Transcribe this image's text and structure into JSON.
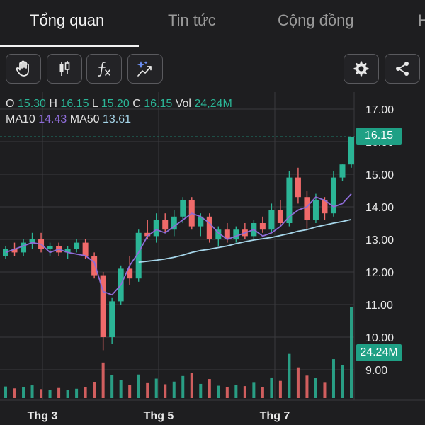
{
  "tabs": [
    {
      "label": "Tổng quan",
      "active": true
    },
    {
      "label": "Tin tức",
      "active": false
    },
    {
      "label": "Cộng đồng",
      "active": false
    },
    {
      "label": "H",
      "active": false
    }
  ],
  "toolbar": {
    "left": [
      {
        "icon": "hand-pointer-icon"
      },
      {
        "icon": "candlestick-icon"
      },
      {
        "icon": "function-fx-icon"
      },
      {
        "icon": "sparkle-trend-icon"
      }
    ],
    "right": [
      {
        "icon": "gear-icon"
      },
      {
        "icon": "share-icon"
      }
    ]
  },
  "legend": {
    "o_label": "O",
    "o_value": "15.30",
    "h_label": "H",
    "h_value": "16.15",
    "l_label": "L",
    "l_value": "15.20",
    "c_label": "C",
    "c_value": "16.15",
    "vol_label": "Vol",
    "vol_value": "24,24M",
    "ma10_label": "MA10",
    "ma10_value": "14.43",
    "ma50_label": "MA50",
    "ma50_value": "13.61"
  },
  "price_badge": "16.15",
  "volume_badge": "24.24M",
  "colors": {
    "up": "#2bb596",
    "down": "#f06a6a",
    "ma10": "#8e6cd8",
    "ma50": "#a6d6ea",
    "background": "#1e1e20",
    "grid": "#3a3a3e"
  },
  "chart_data": {
    "type": "candlestick",
    "yticks": [
      "17.00",
      "16.00",
      "15.00",
      "14.00",
      "13.00",
      "12.00",
      "11.00",
      "10.00",
      "9.00"
    ],
    "ylim": [
      8.6,
      17.4
    ],
    "xticks": [
      "Thg 3",
      "Thg 5",
      "Thg 7"
    ],
    "last_close": 16.15,
    "grid": true,
    "series": [
      {
        "name": "MA10",
        "values": [
          12.6,
          12.7,
          12.8,
          12.9,
          12.85,
          12.6,
          12.7,
          12.6,
          12.55,
          12.5,
          12.3,
          11.4,
          11.3,
          11.6,
          12.2,
          12.6,
          13.1,
          13.3,
          13.2,
          13.4,
          13.6,
          13.8,
          13.7,
          13.5,
          13.2,
          13.0,
          13.1,
          13.2,
          13.3,
          13.1,
          13.2,
          13.4,
          13.7,
          13.9,
          14.0,
          14.3,
          14.2,
          14.0,
          14.1,
          14.4
        ]
      },
      {
        "name": "MA50",
        "values": [
          null,
          null,
          null,
          null,
          null,
          null,
          null,
          null,
          null,
          null,
          null,
          null,
          null,
          null,
          null,
          12.3,
          12.33,
          12.36,
          12.4,
          12.45,
          12.52,
          12.6,
          12.66,
          12.7,
          12.75,
          12.8,
          12.87,
          12.93,
          12.98,
          13.02,
          13.06,
          13.12,
          13.18,
          13.25,
          13.3,
          13.38,
          13.44,
          13.5,
          13.55,
          13.61
        ]
      }
    ],
    "candles": [
      [
        12.5,
        12.8,
        12.4,
        12.7
      ],
      [
        12.7,
        12.9,
        12.5,
        12.6
      ],
      [
        12.6,
        13.0,
        12.5,
        12.9
      ],
      [
        12.9,
        13.2,
        12.7,
        13.0
      ],
      [
        13.0,
        13.2,
        12.6,
        12.7
      ],
      [
        12.7,
        12.9,
        12.5,
        12.8
      ],
      [
        12.8,
        12.9,
        12.5,
        12.6
      ],
      [
        12.6,
        12.8,
        12.4,
        12.7
      ],
      [
        12.7,
        13.0,
        12.6,
        12.9
      ],
      [
        12.9,
        13.0,
        12.4,
        12.5
      ],
      [
        12.5,
        12.6,
        11.8,
        11.9
      ],
      [
        11.9,
        12.0,
        9.6,
        10.0
      ],
      [
        10.0,
        11.2,
        9.8,
        11.1
      ],
      [
        11.1,
        12.2,
        11.0,
        12.1
      ],
      [
        12.1,
        12.5,
        11.6,
        11.8
      ],
      [
        11.8,
        13.3,
        11.7,
        13.2
      ],
      [
        13.2,
        13.6,
        13.0,
        13.1
      ],
      [
        13.1,
        13.8,
        12.9,
        13.6
      ],
      [
        13.6,
        13.8,
        13.2,
        13.3
      ],
      [
        13.3,
        13.9,
        13.1,
        13.7
      ],
      [
        13.7,
        14.3,
        13.5,
        14.2
      ],
      [
        14.2,
        14.3,
        13.3,
        13.4
      ],
      [
        13.4,
        13.8,
        13.1,
        13.7
      ],
      [
        13.7,
        13.8,
        12.9,
        13.0
      ],
      [
        13.0,
        13.4,
        12.8,
        13.3
      ],
      [
        13.3,
        13.5,
        12.9,
        13.0
      ],
      [
        13.0,
        13.4,
        12.9,
        13.3
      ],
      [
        13.3,
        13.5,
        13.0,
        13.1
      ],
      [
        13.1,
        13.6,
        13.0,
        13.5
      ],
      [
        13.5,
        13.7,
        13.2,
        13.3
      ],
      [
        13.3,
        14.1,
        13.2,
        13.9
      ],
      [
        13.9,
        14.2,
        13.4,
        13.5
      ],
      [
        13.5,
        15.1,
        13.4,
        14.9
      ],
      [
        14.9,
        15.2,
        14.1,
        14.3
      ],
      [
        14.3,
        14.5,
        13.3,
        13.6
      ],
      [
        13.6,
        14.4,
        13.5,
        14.2
      ],
      [
        14.2,
        14.3,
        13.6,
        13.8
      ],
      [
        13.8,
        15.1,
        13.7,
        14.9
      ],
      [
        14.9,
        15.3,
        14.8,
        15.3
      ],
      [
        15.3,
        16.15,
        15.2,
        16.15
      ]
    ],
    "volume_badge": "24.24M",
    "volumes": [
      3.1,
      2.6,
      2.9,
      3.4,
      2.4,
      2.2,
      2.7,
      2.1,
      2.5,
      3.0,
      4.2,
      9.5,
      6.1,
      4.8,
      3.5,
      6.3,
      4.0,
      5.2,
      3.7,
      4.4,
      5.9,
      6.7,
      3.8,
      5.1,
      3.3,
      2.9,
      3.6,
      3.2,
      4.1,
      3.0,
      5.5,
      4.6,
      11.8,
      8.2,
      6.0,
      5.3,
      4.1,
      10.4,
      8.9,
      24.24
    ]
  }
}
